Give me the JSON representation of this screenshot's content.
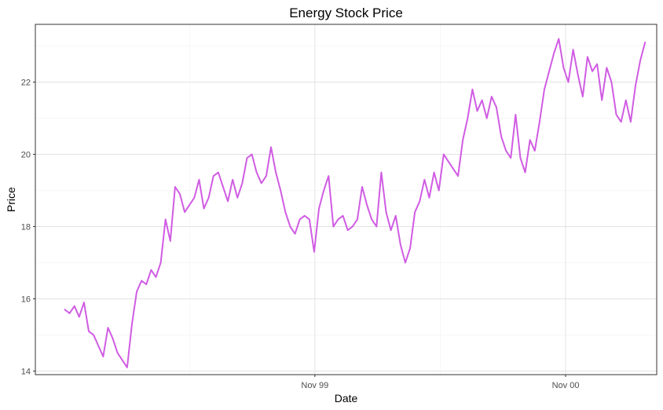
{
  "chart_data": {
    "type": "line",
    "title": "Energy Stock Price",
    "xlabel": "Date",
    "ylabel": "Price",
    "x_tick_labels": [
      "Nov 99",
      "Nov 00"
    ],
    "x_tick_positions": [
      "1999-11-01",
      "2000-11-01"
    ],
    "ylim": [
      13.9,
      23.6
    ],
    "yticks": [
      14,
      16,
      18,
      20,
      22
    ],
    "xlim": [
      "1998-09-19",
      "2001-03-14"
    ],
    "grid": true,
    "legend": "none",
    "series": [
      {
        "color": "#d05ce3",
        "x": [
          "1998-11-01",
          "1998-11-08",
          "1998-11-15",
          "1998-11-22",
          "1998-11-29",
          "1998-12-06",
          "1998-12-13",
          "1998-12-20",
          "1998-12-27",
          "1999-01-03",
          "1999-01-10",
          "1999-01-17",
          "1999-01-24",
          "1999-01-31",
          "1999-02-07",
          "1999-02-14",
          "1999-02-21",
          "1999-02-28",
          "1999-03-07",
          "1999-03-14",
          "1999-03-21",
          "1999-03-28",
          "1999-04-04",
          "1999-04-11",
          "1999-04-18",
          "1999-04-25",
          "1999-05-02",
          "1999-05-09",
          "1999-05-16",
          "1999-05-23",
          "1999-05-30",
          "1999-06-06",
          "1999-06-13",
          "1999-06-20",
          "1999-06-27",
          "1999-07-04",
          "1999-07-11",
          "1999-07-18",
          "1999-07-25",
          "1999-08-01",
          "1999-08-08",
          "1999-08-15",
          "1999-08-22",
          "1999-08-29",
          "1999-09-05",
          "1999-09-12",
          "1999-09-19",
          "1999-09-26",
          "1999-10-03",
          "1999-10-10",
          "1999-10-17",
          "1999-10-24",
          "1999-10-31",
          "1999-11-07",
          "1999-11-14",
          "1999-11-21",
          "1999-11-28",
          "1999-12-05",
          "1999-12-12",
          "1999-12-19",
          "1999-12-26",
          "2000-01-02",
          "2000-01-09",
          "2000-01-16",
          "2000-01-23",
          "2000-01-30",
          "2000-02-06",
          "2000-02-13",
          "2000-02-20",
          "2000-02-27",
          "2000-03-05",
          "2000-03-12",
          "2000-03-19",
          "2000-03-26",
          "2000-04-02",
          "2000-04-09",
          "2000-04-16",
          "2000-04-23",
          "2000-04-30",
          "2000-05-07",
          "2000-05-14",
          "2000-05-21",
          "2000-05-28",
          "2000-06-04",
          "2000-06-11",
          "2000-06-18",
          "2000-06-25",
          "2000-07-02",
          "2000-07-09",
          "2000-07-16",
          "2000-07-23",
          "2000-07-30",
          "2000-08-06",
          "2000-08-13",
          "2000-08-20",
          "2000-08-27",
          "2000-09-03",
          "2000-09-10",
          "2000-09-17",
          "2000-09-24",
          "2000-10-01",
          "2000-10-08",
          "2000-10-15",
          "2000-10-22",
          "2000-10-29",
          "2000-11-05",
          "2000-11-12",
          "2000-11-19",
          "2000-11-26",
          "2000-12-03",
          "2000-12-10",
          "2000-12-17",
          "2000-12-24",
          "2000-12-31",
          "2001-01-07",
          "2001-01-14",
          "2001-01-21",
          "2001-01-28",
          "2001-02-04",
          "2001-02-11",
          "2001-02-18",
          "2001-02-25"
        ],
        "y": [
          15.7,
          15.6,
          15.8,
          15.5,
          15.9,
          15.1,
          15.0,
          14.7,
          14.4,
          15.2,
          14.9,
          14.5,
          14.3,
          14.1,
          15.3,
          16.2,
          16.5,
          16.4,
          16.8,
          16.6,
          17.0,
          18.2,
          17.6,
          19.1,
          18.9,
          18.4,
          18.6,
          18.8,
          19.3,
          18.5,
          18.8,
          19.4,
          19.5,
          19.1,
          18.7,
          19.3,
          18.8,
          19.2,
          19.9,
          20.0,
          19.5,
          19.2,
          19.4,
          20.2,
          19.5,
          19.0,
          18.4,
          18.0,
          17.8,
          18.2,
          18.3,
          18.2,
          17.3,
          18.5,
          19.0,
          19.4,
          18.0,
          18.2,
          18.3,
          17.9,
          18.0,
          18.2,
          19.1,
          18.6,
          18.2,
          18.0,
          19.5,
          18.4,
          17.9,
          18.3,
          17.5,
          17.0,
          17.4,
          18.4,
          18.7,
          19.3,
          18.8,
          19.5,
          19.0,
          20.0,
          19.8,
          19.6,
          19.4,
          20.4,
          21.0,
          21.8,
          21.2,
          21.5,
          21.0,
          21.6,
          21.3,
          20.5,
          20.1,
          19.9,
          21.1,
          19.9,
          19.5,
          20.4,
          20.1,
          20.9,
          21.8,
          22.3,
          22.8,
          23.2,
          22.4,
          22.0,
          22.9,
          22.2,
          21.6,
          22.7,
          22.3,
          22.5,
          21.5,
          22.4,
          22.0,
          21.1,
          20.9,
          21.5,
          20.9,
          21.9,
          22.6,
          23.1
        ]
      }
    ]
  }
}
